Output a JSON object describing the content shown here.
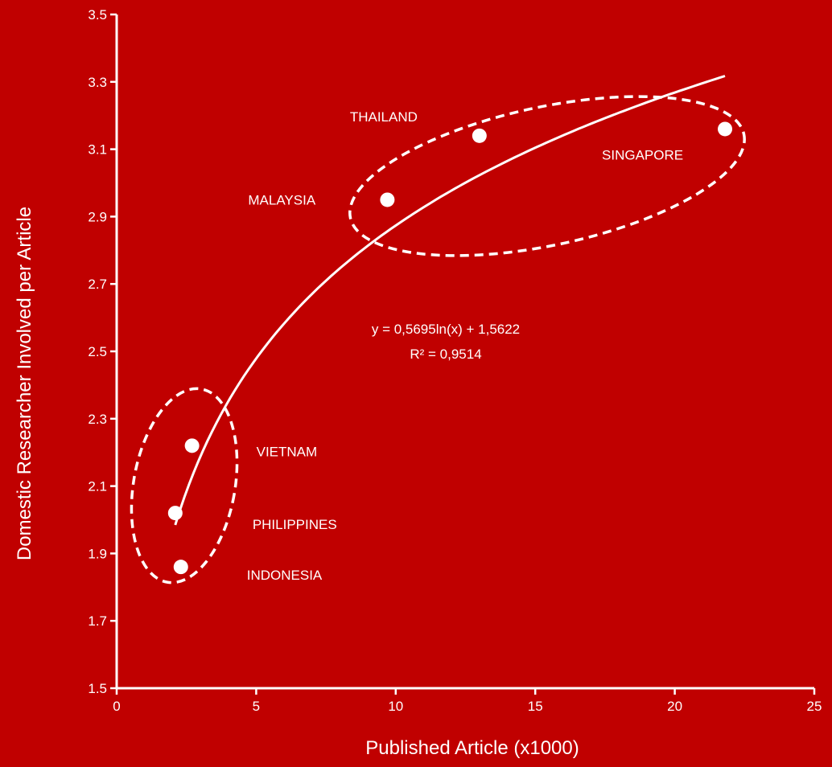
{
  "chart_data": {
    "type": "scatter",
    "title": "",
    "xlabel": "Published Article (x1000)",
    "ylabel": "Domestic Researcher Involved per Article",
    "xlim": [
      0,
      25
    ],
    "ylim": [
      1.5,
      3.5
    ],
    "x_ticks": [
      0,
      5,
      10,
      15,
      20,
      25
    ],
    "y_ticks": [
      "1.5",
      "1.7",
      "1.9",
      "2.1",
      "2.3",
      "2.5",
      "2.7",
      "2.9",
      "3.1",
      "3.3",
      "3.5"
    ],
    "grid": false,
    "legend": "none",
    "colors": {
      "background": "#c00000",
      "foreground": "#ffffff"
    },
    "points": [
      {
        "label": "SINGAPORE",
        "x": 21.8,
        "y": 3.16
      },
      {
        "label": "THAILAND",
        "x": 13.0,
        "y": 3.14
      },
      {
        "label": "MALAYSIA",
        "x": 9.7,
        "y": 2.95
      },
      {
        "label": "VIETNAM",
        "x": 2.7,
        "y": 2.22
      },
      {
        "label": "PHILIPPINES",
        "x": 2.1,
        "y": 2.02
      },
      {
        "label": "INDONESIA",
        "x": 2.3,
        "y": 1.86
      }
    ],
    "trendline": {
      "type": "logarithmic",
      "a": 0.5695,
      "b": 1.5622,
      "x_range": [
        2.1,
        21.8
      ],
      "equation": "y = 0,5695ln(x) + 1,5622",
      "r_squared": "R² = 0,9514"
    },
    "groups": [
      {
        "members": [
          "MALAYSIA",
          "THAILAND",
          "SINGAPORE"
        ]
      },
      {
        "members": [
          "VIETNAM",
          "PHILIPPINES",
          "INDONESIA"
        ]
      }
    ]
  }
}
